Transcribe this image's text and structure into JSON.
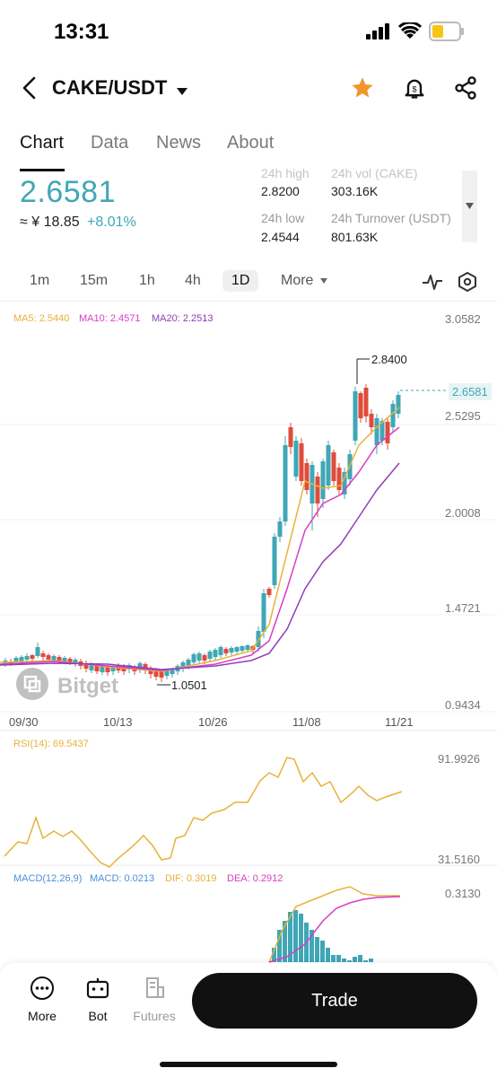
{
  "status": {
    "time": "13:31"
  },
  "header": {
    "pair": "CAKE/USDT"
  },
  "tabs": [
    "Chart",
    "Data",
    "News",
    "About"
  ],
  "price": {
    "last": "2.6581",
    "cny": "≈ ¥ 18.85",
    "change": "+8.01%"
  },
  "stats": {
    "high_label": "24h high",
    "high_value": "2.8200",
    "vol_label": "24h vol (CAKE)",
    "vol_value": "303.16K",
    "low_label": "24h low",
    "low_value": "2.4544",
    "turnover_label": "24h Turnover (USDT)",
    "turnover_value": "801.63K"
  },
  "intervals": [
    "1m",
    "15m",
    "1h",
    "4h",
    "1D"
  ],
  "more_label": "More",
  "legend_ma": {
    "ma5": "MA5: 2.5440",
    "ma10": "MA10: 2.4571",
    "ma20": "MA20: 2.2513"
  },
  "price_axis": [
    "3.0582",
    "2.5295",
    "2.0008",
    "1.4721",
    "0.9434"
  ],
  "last_price_tag": "2.6581",
  "high_marker": "2.8400",
  "low_marker": "1.0501",
  "watermark": "Bitget",
  "dates": [
    "09/30",
    "10/13",
    "10/26",
    "11/08",
    "11/21"
  ],
  "rsi": {
    "legend": "RSI(14): 69.5437",
    "max": "91.9926",
    "min": "31.5160"
  },
  "macd": {
    "legend_name": "MACD(12,26,9)",
    "macd": "MACD: 0.0213",
    "dif": "DIF: 0.3019",
    "dea": "DEA: 0.2912",
    "max": "0.3130"
  },
  "nav": {
    "more": "More",
    "bot": "Bot",
    "futures": "Futures",
    "trade": "Trade"
  },
  "colors": {
    "up": "#3fa7b5",
    "down": "#e04b3a",
    "ma5": "#e6b23a",
    "ma10": "#d63fc4",
    "ma20": "#8e3fb8"
  },
  "chart_data": {
    "type": "candlestick",
    "x": [
      "09/30",
      "10/13",
      "10/26",
      "11/08",
      "11/21"
    ],
    "y_range": [
      0.9434,
      3.0582
    ],
    "ma": {
      "MA5": 2.544,
      "MA10": 2.4571,
      "MA20": 2.2513
    },
    "high": 2.84,
    "low": 1.0501,
    "last": 2.6581,
    "rsi": {
      "value": 69.5437,
      "range": [
        31.516,
        91.9926
      ]
    },
    "macd": {
      "macd": 0.0213,
      "dif": 0.3019,
      "dea": 0.2912,
      "max": 0.313
    }
  }
}
